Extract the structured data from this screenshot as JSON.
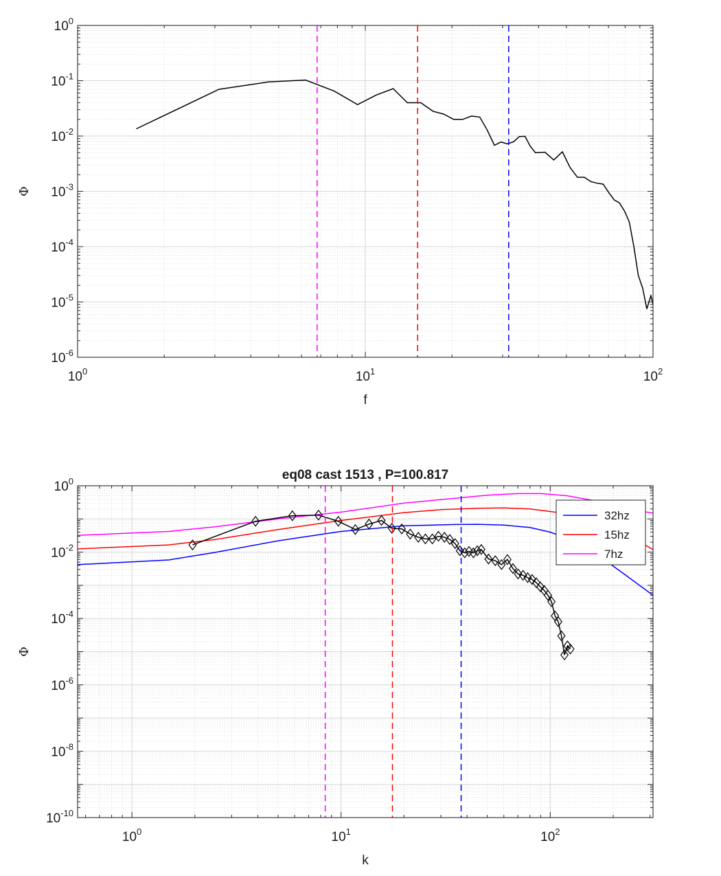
{
  "chart_data": [
    {
      "type": "line",
      "title": "",
      "xlabel": "f",
      "ylabel": "Φ",
      "xscale": "log",
      "yscale": "log",
      "xlim": [
        1,
        100
      ],
      "ylim": [
        1e-06,
        1
      ],
      "x_ticks": [
        {
          "value": 1,
          "base": "10",
          "exp": "0"
        },
        {
          "value": 10,
          "base": "10",
          "exp": "1"
        },
        {
          "value": 100,
          "base": "10",
          "exp": "2"
        }
      ],
      "y_ticks": [
        {
          "value": 1,
          "base": "10",
          "exp": "0"
        },
        {
          "value": 0.1,
          "base": "10",
          "exp": "-1"
        },
        {
          "value": 0.01,
          "base": "10",
          "exp": "-2"
        },
        {
          "value": 0.001,
          "base": "10",
          "exp": "-3"
        },
        {
          "value": 0.0001,
          "base": "10",
          "exp": "-4"
        },
        {
          "value": 1e-05,
          "base": "10",
          "exp": "-5"
        },
        {
          "value": 1e-06,
          "base": "10",
          "exp": "-6"
        }
      ],
      "grid": "major and minor",
      "series": [
        {
          "color": "#000000",
          "marker": "none",
          "x": [
            1.6,
            3.1,
            4.6,
            6.2,
            7.8,
            9.4,
            10.9,
            12.5,
            14.0,
            15.6,
            17.2,
            18.7,
            20.3,
            21.8,
            23.4,
            25.0,
            26.5,
            28.1,
            29.6,
            31.2,
            32.8,
            34.3,
            35.9,
            37.4,
            39.0,
            42.1,
            45.2,
            48.4,
            51.5,
            54.6,
            57.7,
            60.8,
            64.0,
            67.1,
            70.2,
            73.3,
            76.4,
            79.6,
            82.7,
            85.8,
            88.9,
            92.0,
            95.2,
            98.3,
            100.0
          ],
          "y": [
            0.0135,
            0.07,
            0.095,
            0.103,
            0.065,
            0.037,
            0.055,
            0.072,
            0.04,
            0.04,
            0.028,
            0.025,
            0.02,
            0.02,
            0.023,
            0.022,
            0.013,
            0.0068,
            0.0078,
            0.0072,
            0.0079,
            0.0098,
            0.0099,
            0.0066,
            0.005,
            0.0051,
            0.0037,
            0.0052,
            0.0027,
            0.0018,
            0.0018,
            0.0015,
            0.0014,
            0.00135,
            0.00095,
            0.0007,
            0.00062,
            0.00044,
            0.00028,
            0.0001,
            3e-05,
            1.8e-05,
            7.5e-06,
            1.3e-05,
            9e-06
          ]
        }
      ],
      "vlines": [
        {
          "x": 6.8,
          "color": "#ff00ff",
          "style": "dashed"
        },
        {
          "x": 15.2,
          "color": "#ff0000",
          "style": "dashed"
        },
        {
          "x": 31.5,
          "color": "#0000ff",
          "style": "dashed"
        }
      ]
    },
    {
      "type": "line",
      "title": "eq08 cast 1513 , P=100.817",
      "xlabel": "k",
      "ylabel": "Φ",
      "xscale": "log",
      "yscale": "log",
      "xlim": [
        0.55,
        310
      ],
      "ylim": [
        1e-10,
        1
      ],
      "x_ticks": [
        {
          "value": 1,
          "base": "10",
          "exp": "0"
        },
        {
          "value": 10,
          "base": "10",
          "exp": "1"
        },
        {
          "value": 100,
          "base": "10",
          "exp": "2"
        }
      ],
      "y_ticks": [
        {
          "value": 1,
          "base": "10",
          "exp": "0"
        },
        {
          "value": 0.01,
          "base": "10",
          "exp": "-2"
        },
        {
          "value": 0.0001,
          "base": "10",
          "exp": "-4"
        },
        {
          "value": 1e-06,
          "base": "10",
          "exp": "-6"
        },
        {
          "value": 1e-08,
          "base": "10",
          "exp": "-8"
        },
        {
          "value": 1e-10,
          "base": "10",
          "exp": "-10"
        }
      ],
      "grid": "major and minor",
      "legend": {
        "position": "top-right",
        "entries": [
          "32hz",
          "15hz",
          "7hz"
        ]
      },
      "series": [
        {
          "name": "32hz",
          "color": "#0000ff",
          "marker": "none",
          "x": [
            0.55,
            1.5,
            2.5,
            5,
            10,
            20,
            35,
            45,
            60,
            80,
            100,
            130,
            170,
            230,
            310
          ],
          "y": [
            0.0042,
            0.0058,
            0.0098,
            0.022,
            0.042,
            0.062,
            0.068,
            0.069,
            0.065,
            0.055,
            0.04,
            0.022,
            0.008,
            0.002,
            0.0005
          ]
        },
        {
          "name": "15hz",
          "color": "#ff0000",
          "marker": "none",
          "x": [
            0.55,
            1.5,
            2.5,
            5,
            10,
            20,
            30,
            45,
            60,
            80,
            110,
            150,
            220,
            310
          ],
          "y": [
            0.0125,
            0.0165,
            0.024,
            0.048,
            0.09,
            0.155,
            0.19,
            0.21,
            0.215,
            0.2,
            0.155,
            0.1,
            0.04,
            0.012
          ]
        },
        {
          "name": "7hz",
          "color": "#ff00ff",
          "marker": "none",
          "x": [
            0.55,
            1.5,
            2.5,
            5,
            10,
            20,
            35,
            50,
            70,
            90,
            120,
            160,
            220,
            310
          ],
          "y": [
            0.032,
            0.042,
            0.058,
            0.1,
            0.16,
            0.3,
            0.42,
            0.52,
            0.58,
            0.58,
            0.5,
            0.36,
            0.21,
            0.15
          ]
        },
        {
          "color": "#000000",
          "marker": "diamond",
          "x": [
            1.95,
            3.9,
            5.85,
            7.8,
            9.7,
            11.7,
            13.6,
            15.6,
            17.5,
            19.5,
            21.4,
            23.4,
            25.3,
            27.3,
            29.2,
            31.2,
            33.1,
            35.1,
            37.0,
            39.0,
            40.9,
            42.9,
            44.8,
            46.8,
            50.7,
            54.6,
            58.5,
            62.4,
            66.3,
            70.2,
            74.1,
            78.0,
            81.9,
            85.8,
            89.7,
            93.6,
            97.5,
            101.4,
            105.3,
            109.2,
            113.1,
            117.0,
            120.9,
            124.8
          ],
          "y": [
            0.0165,
            0.085,
            0.125,
            0.13,
            0.085,
            0.048,
            0.07,
            0.09,
            0.052,
            0.05,
            0.035,
            0.028,
            0.025,
            0.025,
            0.03,
            0.028,
            0.024,
            0.018,
            0.011,
            0.0095,
            0.0105,
            0.0095,
            0.011,
            0.012,
            0.0062,
            0.0055,
            0.0042,
            0.006,
            0.0032,
            0.0022,
            0.002,
            0.0017,
            0.0015,
            0.0012,
            0.0009,
            0.0007,
            0.0005,
            0.00032,
            0.00012,
            8e-05,
            3e-05,
            8e-06,
            1.5e-05,
            1.2e-05
          ]
        }
      ],
      "vlines": [
        {
          "x": 8.4,
          "color": "#ff00ff",
          "style": "dashed"
        },
        {
          "x": 17.6,
          "color": "#ff0000",
          "style": "dashed"
        },
        {
          "x": 37.5,
          "color": "#0000ff",
          "style": "dashed"
        }
      ]
    }
  ]
}
